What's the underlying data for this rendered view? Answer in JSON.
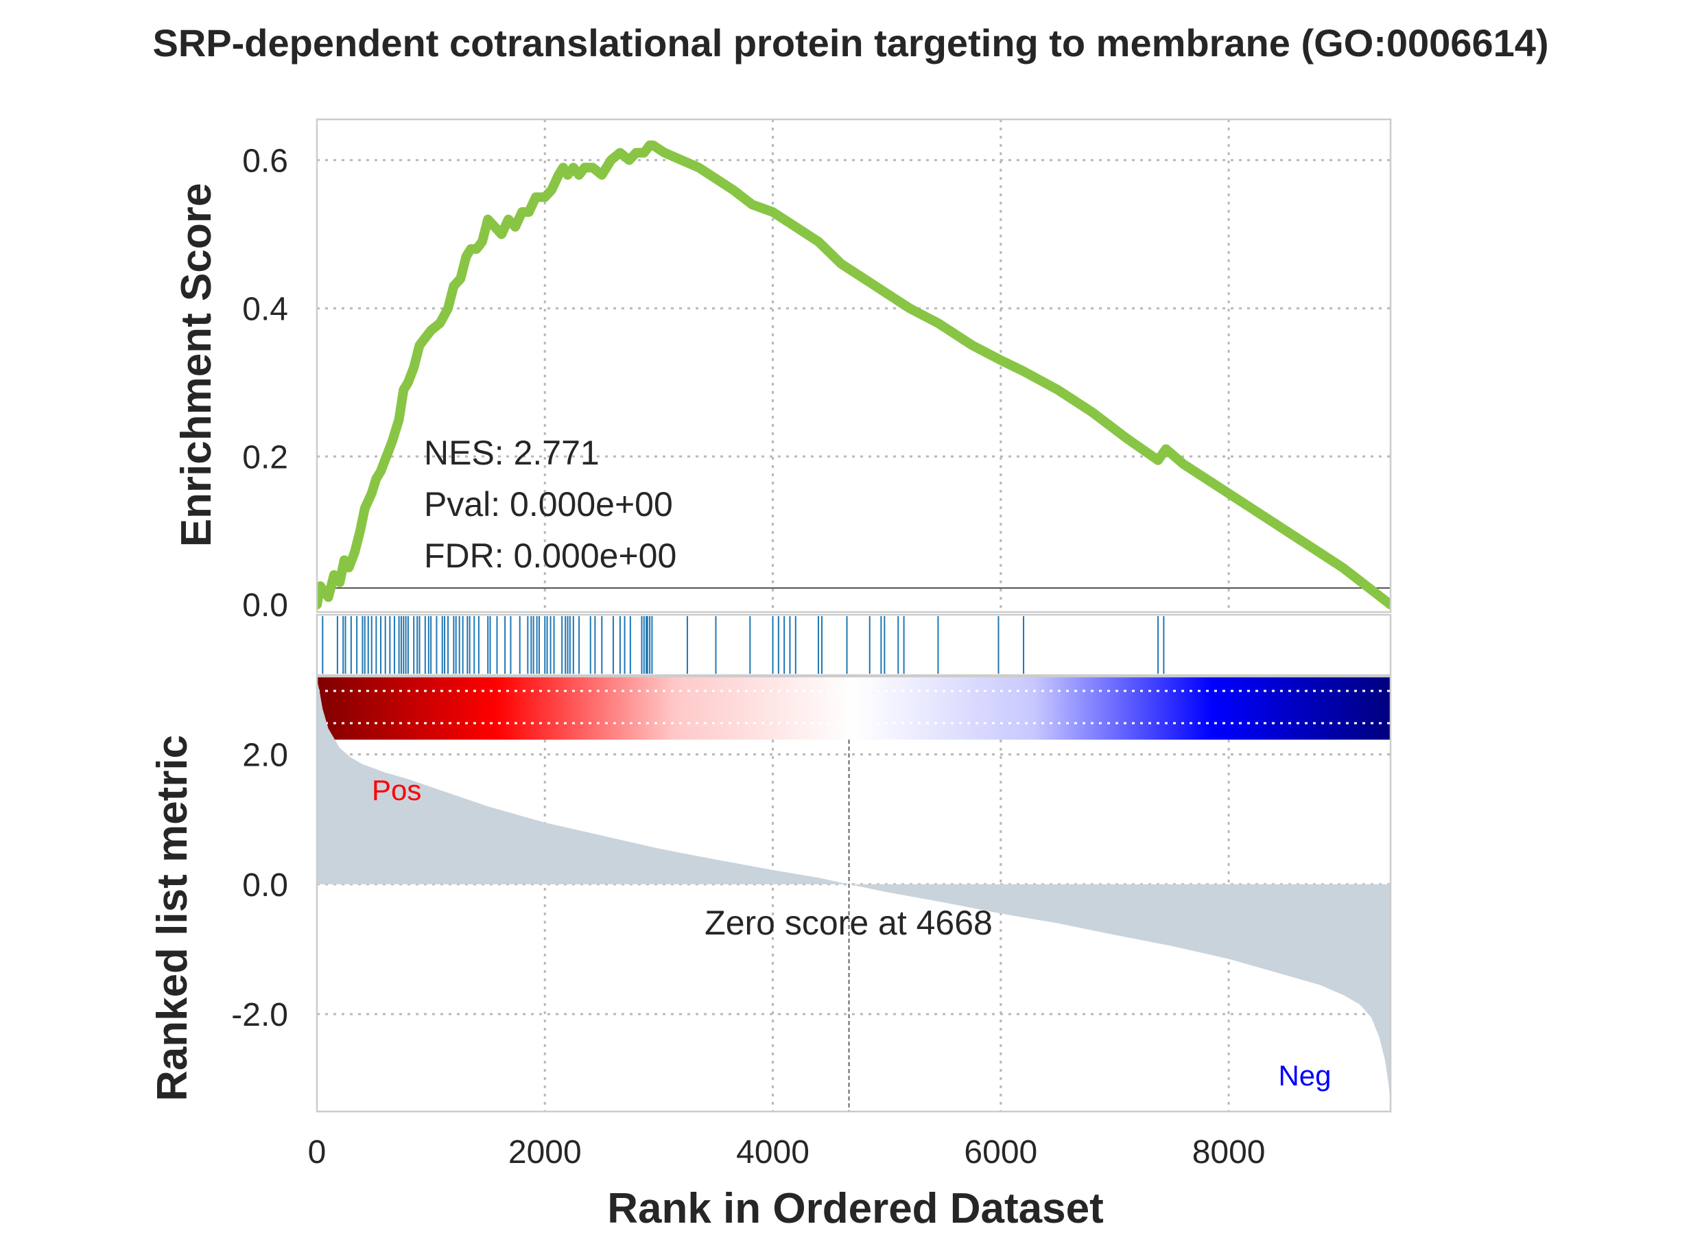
{
  "chart_data": {
    "type": "line",
    "title": "SRP-dependent cotranslational protein targeting to membrane (GO:0006614)",
    "xlabel": "Rank in Ordered Dataset",
    "xlim": [
      0,
      9420
    ],
    "xticks": [
      0,
      2000,
      4000,
      6000,
      8000
    ],
    "enrichment_panel": {
      "ylabel": "Enrichment Score",
      "ylim": [
        -0.01,
        0.655
      ],
      "yticks": [
        {
          "value": 0.0,
          "label": "0.0"
        },
        {
          "value": 0.2,
          "label": "0.2"
        },
        {
          "value": 0.4,
          "label": "0.4"
        },
        {
          "value": 0.6,
          "label": "0.6"
        }
      ],
      "line_color": "#88c544",
      "series": [
        {
          "x": [
            0,
            30,
            50,
            100,
            150,
            200,
            240,
            280,
            330,
            380,
            420,
            480,
            520,
            560,
            610,
            660,
            720,
            760,
            800,
            850,
            900,
            950,
            1000,
            1080,
            1150,
            1200,
            1260,
            1310,
            1350,
            1400,
            1450,
            1500,
            1560,
            1620,
            1680,
            1740,
            1800,
            1860,
            1920,
            2000,
            2060,
            2120,
            2160,
            2200,
            2250,
            2300,
            2350,
            2420,
            2500,
            2580,
            2660,
            2740,
            2800,
            2870,
            2920,
            2950,
            3050,
            3200,
            3350,
            3500,
            3650,
            3820,
            4000,
            4200,
            4400,
            4600,
            4800,
            5000,
            5200,
            5450,
            5750,
            6000,
            6200,
            6500,
            6800,
            7100,
            7380,
            7450,
            7600,
            8000,
            8500,
            9000,
            9420
          ],
          "y": [
            0.0,
            0.025,
            0.02,
            0.01,
            0.04,
            0.03,
            0.06,
            0.05,
            0.07,
            0.1,
            0.13,
            0.15,
            0.17,
            0.18,
            0.2,
            0.22,
            0.25,
            0.29,
            0.3,
            0.32,
            0.35,
            0.36,
            0.37,
            0.38,
            0.4,
            0.43,
            0.44,
            0.47,
            0.48,
            0.48,
            0.49,
            0.52,
            0.51,
            0.5,
            0.52,
            0.51,
            0.53,
            0.53,
            0.55,
            0.55,
            0.56,
            0.58,
            0.59,
            0.58,
            0.59,
            0.58,
            0.59,
            0.59,
            0.58,
            0.6,
            0.61,
            0.6,
            0.61,
            0.61,
            0.62,
            0.62,
            0.61,
            0.6,
            0.59,
            0.575,
            0.56,
            0.54,
            0.53,
            0.51,
            0.49,
            0.46,
            0.44,
            0.42,
            0.4,
            0.38,
            0.35,
            0.33,
            0.315,
            0.29,
            0.26,
            0.225,
            0.195,
            0.21,
            0.19,
            0.15,
            0.1,
            0.05,
            0.0
          ]
        }
      ]
    },
    "hits": [
      50,
      180,
      230,
      250,
      300,
      350,
      400,
      420,
      450,
      480,
      520,
      560,
      600,
      640,
      680,
      720,
      740,
      760,
      780,
      800,
      850,
      880,
      900,
      950,
      980,
      1000,
      1050,
      1100,
      1120,
      1150,
      1200,
      1220,
      1250,
      1280,
      1320,
      1340,
      1380,
      1420,
      1500,
      1520,
      1580,
      1650,
      1700,
      1780,
      1850,
      1880,
      1900,
      1930,
      1950,
      2000,
      2020,
      2050,
      2080,
      2150,
      2180,
      2200,
      2220,
      2250,
      2300,
      2400,
      2440,
      2500,
      2600,
      2660,
      2700,
      2750,
      2850,
      2870,
      2890,
      2900,
      2920,
      2940,
      3250,
      3500,
      3800,
      4000,
      4050,
      4100,
      4150,
      4200,
      4400,
      4430,
      4650,
      4850,
      4950,
      4980,
      5100,
      5150,
      5450,
      5980,
      6200,
      7380,
      7430
    ],
    "heatmap_colors": [
      "#7f0000",
      "#ff0000",
      "#ffc8c8",
      "#ffffff",
      "#c8c8ff",
      "#0000ff",
      "#00007f"
    ],
    "stats": {
      "nes": "NES: 2.771",
      "pval": "Pval: 0.000e+00",
      "fdr": "FDR: 0.000e+00"
    },
    "ranked_panel": {
      "ylabel": "Ranked list metric",
      "ylim": [
        -3.5,
        3.2
      ],
      "yticks": [
        {
          "value": 2.0,
          "label": "2.0"
        },
        {
          "value": 0.0,
          "label": "0.0"
        },
        {
          "value": -2.0,
          "label": "-2.0"
        }
      ],
      "fill_color": "#c9d3dc",
      "metric": {
        "x": [
          0,
          20,
          50,
          100,
          200,
          300,
          400,
          600,
          800,
          1000,
          1500,
          2000,
          2500,
          3000,
          3500,
          4000,
          4400,
          4668,
          5000,
          5500,
          6000,
          6500,
          7000,
          7500,
          8000,
          8500,
          8800,
          9000,
          9150,
          9250,
          9320,
          9370,
          9400,
          9420
        ],
        "y": [
          3.15,
          3.0,
          2.7,
          2.4,
          2.1,
          1.95,
          1.85,
          1.72,
          1.62,
          1.5,
          1.2,
          0.95,
          0.75,
          0.55,
          0.38,
          0.22,
          0.1,
          0.0,
          -0.12,
          -0.28,
          -0.45,
          -0.6,
          -0.78,
          -0.95,
          -1.15,
          -1.4,
          -1.55,
          -1.7,
          -1.85,
          -2.05,
          -2.35,
          -2.7,
          -3.05,
          -3.35
        ]
      },
      "zero_score_rank": 4668,
      "zero_label": "Zero score at 4668",
      "pos_label": "Pos",
      "neg_label": "Neg",
      "pos_color": "#ff0000",
      "neg_color": "#0000ff"
    },
    "grid": true
  }
}
